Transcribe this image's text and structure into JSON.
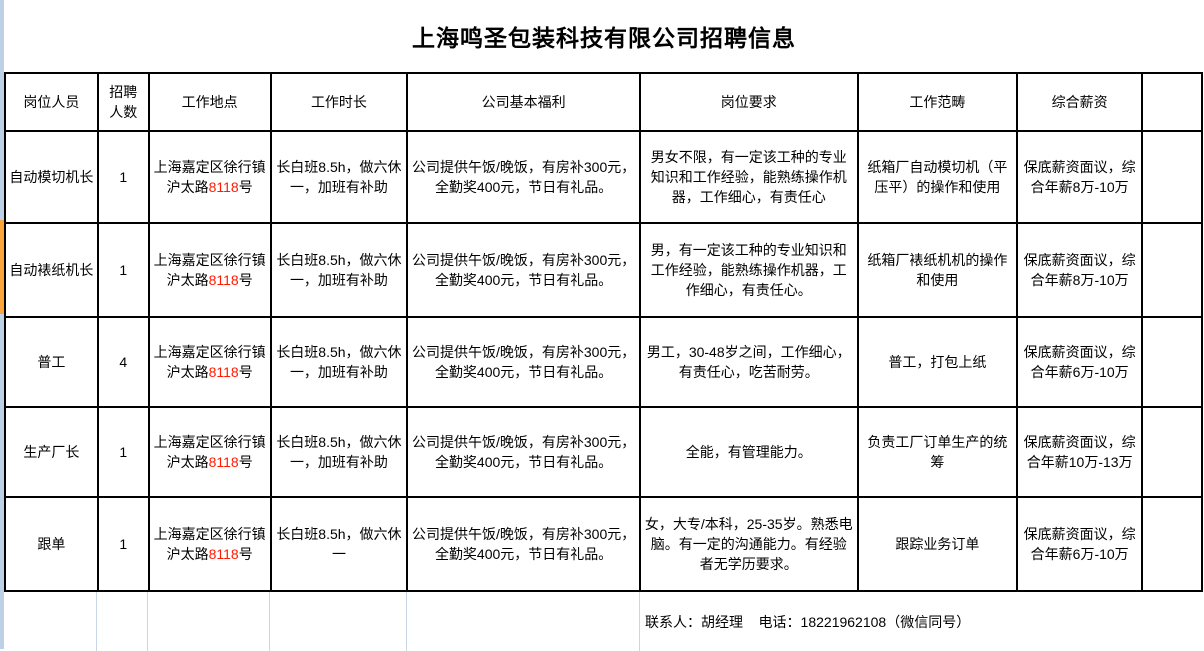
{
  "title": "上海鸣圣包装科技有限公司招聘信息",
  "table": {
    "headers": [
      "岗位人员",
      "招聘人数",
      "工作地点",
      "工作时长",
      "公司基本福利",
      "岗位要求",
      "工作范畴",
      "综合薪资"
    ],
    "rows": [
      {
        "position": "自动模切机长",
        "headcount": "1",
        "location_prefix": "上海嘉定区徐行镇沪太路",
        "location_number": "8118",
        "location_suffix": "号",
        "hours": "长白班8.5h，做六休一，加班有补助",
        "benefits": "公司提供午饭/晚饭，有房补300元，全勤奖400元，节日有礼品。",
        "requirements": "男女不限，有一定该工种的专业知识和工作经验，能熟练操作机器，工作细心，有责任心",
        "scope": "纸箱厂自动模切机（平压平）的操作和使用",
        "salary": "保底薪资面议，综合年薪8万-10万"
      },
      {
        "position": "自动裱纸机长",
        "headcount": "1",
        "location_prefix": "上海嘉定区徐行镇沪太路",
        "location_number": "8118",
        "location_suffix": "号",
        "hours": "长白班8.5h，做六休一，加班有补助",
        "benefits": "公司提供午饭/晚饭，有房补300元，全勤奖400元，节日有礼品。",
        "requirements": "男，有一定该工种的专业知识和工作经验，能熟练操作机器，工作细心，有责任心。",
        "scope": "纸箱厂裱纸机机的操作和使用",
        "salary": "保底薪资面议，综合年薪8万-10万"
      },
      {
        "position": "普工",
        "headcount": "4",
        "location_prefix": "上海嘉定区徐行镇沪太路",
        "location_number": "8118",
        "location_suffix": "号",
        "hours": "长白班8.5h，做六休一，加班有补助",
        "benefits": "公司提供午饭/晚饭，有房补300元，全勤奖400元，节日有礼品。",
        "requirements": "男工，30-48岁之间，工作细心，有责任心，吃苦耐劳。",
        "scope": "普工，打包上纸",
        "salary": "保底薪资面议，综合年薪6万-10万"
      },
      {
        "position": "生产厂长",
        "headcount": "1",
        "location_prefix": "上海嘉定区徐行镇沪太路",
        "location_number": "8118",
        "location_suffix": "号",
        "hours": "长白班8.5h，做六休一，加班有补助",
        "benefits": "公司提供午饭/晚饭，有房补300元，全勤奖400元，节日有礼品。",
        "requirements": "全能，有管理能力。",
        "scope": "负责工厂订单生产的统筹",
        "salary": "保底薪资面议，综合年薪10万-13万"
      },
      {
        "position": "跟单",
        "headcount": "1",
        "location_prefix": "上海嘉定区徐行镇沪太路",
        "location_number": "8118",
        "location_suffix": "号",
        "hours": "长白班8.5h，做六休一",
        "benefits": "公司提供午饭/晚饭，有房补300元，全勤奖400元，节日有礼品。",
        "requirements": "女，大专/本科，25-35岁。熟悉电脑。有一定的沟通能力。有经验者无学历要求。",
        "scope": "跟踪业务订单",
        "salary": "保底薪资面议，综合年薪6万-10万"
      }
    ]
  },
  "footer": {
    "contact": "联系人：胡经理    电话：18221962108（微信同号）"
  },
  "colors": {
    "accent_strip_blue": "#bdd0e6",
    "accent_strip_orange": "#faa53c",
    "highlight_number_red": "#ff1a00",
    "gridline": "#c9d6e6",
    "table_border": "#000000"
  }
}
